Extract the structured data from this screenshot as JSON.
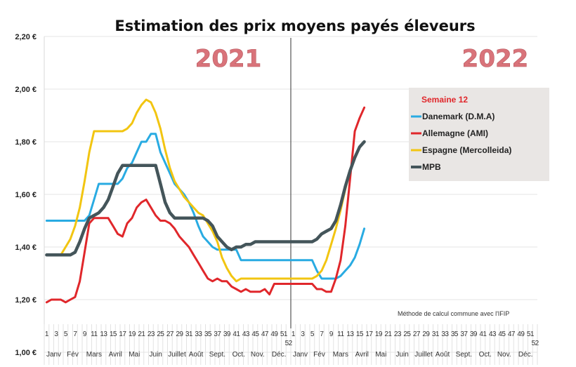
{
  "chart_data": {
    "type": "line",
    "title": "Estimation des prix moyens payés éleveurs",
    "xlabel": "",
    "ylabel": "",
    "ylim": [
      1.0,
      2.2
    ],
    "yticks": [
      "1,00 €",
      "1,20 €",
      "1,40 €",
      "1,60 €",
      "1,80 €",
      "2,00 €",
      "2,20 €"
    ],
    "ytick_values": [
      1.0,
      1.2,
      1.4,
      1.6,
      1.8,
      2.0,
      2.2
    ],
    "grid": true,
    "year_labels": [
      "2021",
      "2022"
    ],
    "week_tick_labels": [
      "1",
      "3",
      "5",
      "7",
      "9",
      "11",
      "13",
      "15",
      "17",
      "19",
      "21",
      "23",
      "25",
      "27",
      "29",
      "31",
      "33",
      "35",
      "37",
      "39",
      "41",
      "43",
      "45",
      "47",
      "49",
      "51",
      "52"
    ],
    "months": [
      "Janv",
      "Fév",
      "Mars",
      "Avril",
      "Mai",
      "Juin",
      "Juillet",
      "Août",
      "Sept.",
      "Oct.",
      "Nov.",
      "Déc."
    ],
    "x_weeks_total": 104,
    "divider_after_week": 52,
    "legend": {
      "title": "Semaine 12",
      "placement": "right"
    },
    "note": "Méthode de calcul commune avec l'IFIP",
    "series": [
      {
        "name": "Danemark (D.M.A)",
        "color": "#29abe2",
        "values": [
          1.5,
          1.5,
          1.5,
          1.5,
          1.5,
          1.5,
          1.5,
          1.5,
          1.5,
          1.52,
          1.58,
          1.64,
          1.64,
          1.64,
          1.64,
          1.64,
          1.66,
          1.7,
          1.72,
          1.76,
          1.8,
          1.8,
          1.83,
          1.83,
          1.76,
          1.72,
          1.68,
          1.64,
          1.62,
          1.6,
          1.57,
          1.53,
          1.48,
          1.44,
          1.42,
          1.4,
          1.39,
          1.39,
          1.39,
          1.39,
          1.39,
          1.35,
          1.35,
          1.35,
          1.35,
          1.35,
          1.35,
          1.35,
          1.35,
          1.35,
          1.35,
          1.35,
          1.35,
          1.35,
          1.35,
          1.35,
          1.35,
          1.31,
          1.28,
          1.28,
          1.28,
          1.28,
          1.29,
          1.31,
          1.33,
          1.36,
          1.41,
          1.47
        ]
      },
      {
        "name": "Allemagne (AMI)",
        "color": "#e0272b",
        "values": [
          1.19,
          1.2,
          1.2,
          1.2,
          1.19,
          1.2,
          1.21,
          1.27,
          1.38,
          1.49,
          1.51,
          1.51,
          1.51,
          1.51,
          1.48,
          1.45,
          1.44,
          1.49,
          1.51,
          1.55,
          1.57,
          1.58,
          1.55,
          1.52,
          1.5,
          1.5,
          1.49,
          1.47,
          1.44,
          1.42,
          1.4,
          1.37,
          1.34,
          1.31,
          1.28,
          1.27,
          1.28,
          1.27,
          1.27,
          1.25,
          1.24,
          1.23,
          1.24,
          1.23,
          1.23,
          1.23,
          1.24,
          1.22,
          1.26,
          1.26,
          1.26,
          1.26,
          1.26,
          1.26,
          1.26,
          1.26,
          1.26,
          1.24,
          1.24,
          1.23,
          1.23,
          1.28,
          1.35,
          1.48,
          1.66,
          1.84,
          1.89,
          1.93
        ]
      },
      {
        "name": "Espagne (Mercolleida)",
        "color": "#f2c511",
        "values": [
          1.37,
          1.37,
          1.37,
          1.37,
          1.4,
          1.43,
          1.48,
          1.55,
          1.65,
          1.76,
          1.84,
          1.84,
          1.84,
          1.84,
          1.84,
          1.84,
          1.84,
          1.85,
          1.87,
          1.91,
          1.94,
          1.96,
          1.95,
          1.91,
          1.85,
          1.77,
          1.7,
          1.65,
          1.62,
          1.59,
          1.57,
          1.55,
          1.53,
          1.52,
          1.49,
          1.46,
          1.42,
          1.36,
          1.32,
          1.29,
          1.27,
          1.28,
          1.28,
          1.28,
          1.28,
          1.28,
          1.28,
          1.28,
          1.28,
          1.28,
          1.28,
          1.28,
          1.28,
          1.28,
          1.28,
          1.28,
          1.28,
          1.29,
          1.31,
          1.35,
          1.41,
          1.47,
          1.54,
          1.62,
          1.69,
          1.74,
          1.78,
          1.8
        ]
      },
      {
        "name": "MPB",
        "color": "#44555a",
        "values": [
          1.37,
          1.37,
          1.37,
          1.37,
          1.37,
          1.37,
          1.38,
          1.42,
          1.47,
          1.51,
          1.52,
          1.53,
          1.55,
          1.58,
          1.63,
          1.68,
          1.71,
          1.71,
          1.71,
          1.71,
          1.71,
          1.71,
          1.71,
          1.71,
          1.64,
          1.57,
          1.53,
          1.51,
          1.51,
          1.51,
          1.51,
          1.51,
          1.51,
          1.51,
          1.5,
          1.48,
          1.44,
          1.42,
          1.4,
          1.39,
          1.4,
          1.4,
          1.41,
          1.41,
          1.42,
          1.42,
          1.42,
          1.42,
          1.42,
          1.42,
          1.42,
          1.42,
          1.42,
          1.42,
          1.42,
          1.42,
          1.42,
          1.43,
          1.45,
          1.46,
          1.47,
          1.5,
          1.56,
          1.63,
          1.69,
          1.74,
          1.78,
          1.8
        ]
      }
    ]
  }
}
